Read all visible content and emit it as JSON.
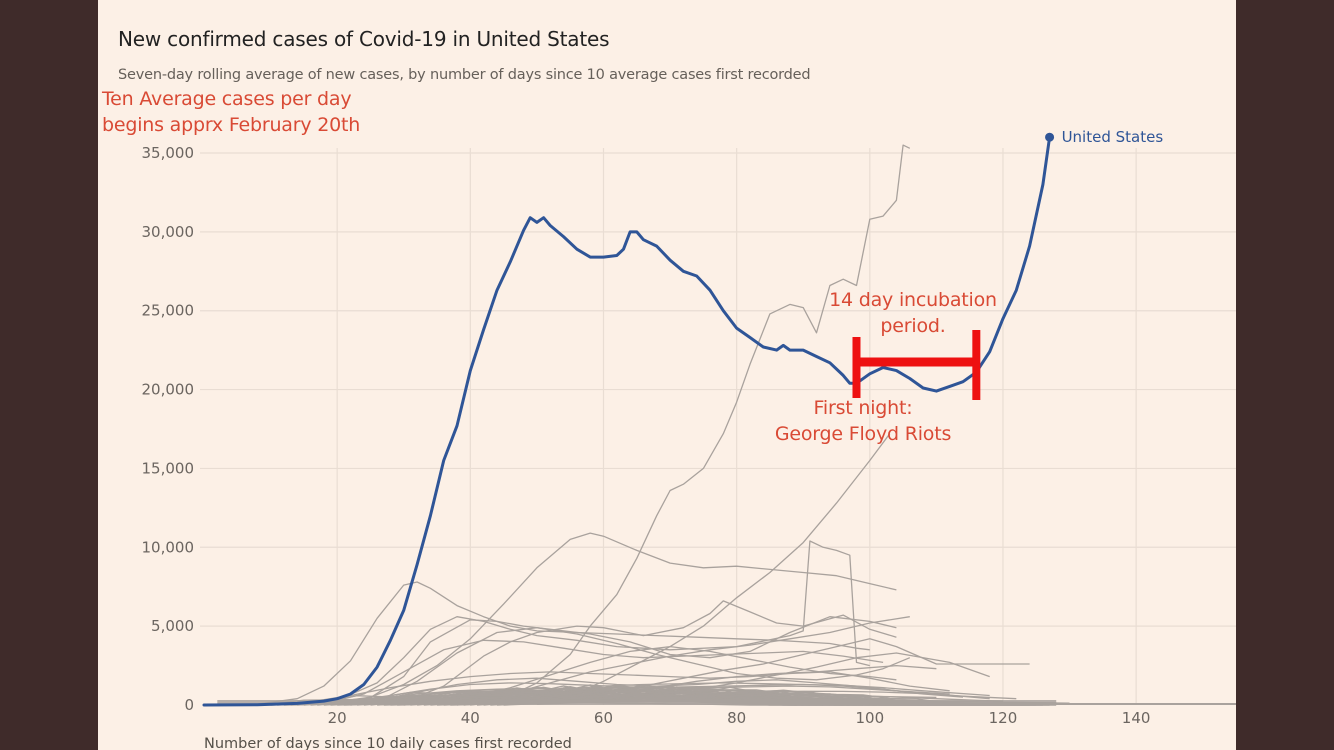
{
  "chart_data": {
    "type": "line",
    "title": "New confirmed cases of Covid-19 in United States",
    "subtitle": "Seven-day rolling average of new cases, by number of days since 10 average cases first recorded",
    "xlabel": "Number of days since 10 daily cases first recorded",
    "ylabel": "",
    "xlim": [
      0,
      155
    ],
    "ylim": [
      0,
      35000
    ],
    "x_ticks": [
      20,
      40,
      60,
      80,
      100,
      120,
      140
    ],
    "y_ticks": [
      0,
      5000,
      10000,
      15000,
      20000,
      25000,
      30000,
      35000
    ],
    "y_tick_labels": [
      "0",
      "5,000",
      "10,000",
      "15,000",
      "20,000",
      "25,000",
      "30,000",
      "35,000"
    ],
    "grid": true,
    "highlight_color": "#2f5597",
    "background_color": "#a9a29d",
    "highlight": {
      "name": "United States",
      "x": [
        0,
        8,
        14,
        18,
        20,
        22,
        24,
        26,
        28,
        30,
        32,
        34,
        36,
        38,
        40,
        42,
        44,
        46,
        48,
        49,
        50,
        51,
        52,
        54,
        56,
        58,
        60,
        62,
        63,
        64,
        65,
        66,
        68,
        70,
        72,
        74,
        76,
        78,
        80,
        82,
        84,
        86,
        87,
        88,
        90,
        92,
        94,
        96,
        97,
        98,
        100,
        102,
        104,
        106,
        108,
        110,
        112,
        114,
        116,
        118,
        120,
        122,
        124,
        126,
        127
      ],
      "values": [
        0,
        20,
        100,
        250,
        400,
        700,
        1300,
        2400,
        4100,
        6000,
        8900,
        12000,
        15500,
        17700,
        21200,
        23800,
        26300,
        28100,
        30100,
        30900,
        30600,
        30900,
        30400,
        29700,
        28900,
        28400,
        28400,
        28500,
        28900,
        30000,
        30000,
        29500,
        29100,
        28200,
        27500,
        27200,
        26300,
        25000,
        23900,
        23300,
        22700,
        22500,
        22800,
        22500,
        22500,
        22100,
        21700,
        20900,
        20400,
        20400,
        21000,
        21400,
        21200,
        20700,
        20100,
        19900,
        20200,
        20500,
        21100,
        22400,
        24500,
        26300,
        29100,
        33000,
        36000
      ]
    },
    "background_series": [
      {
        "x": [
          40,
          45,
          50,
          55,
          58,
          62,
          65,
          68,
          70,
          72,
          75,
          78,
          80,
          82,
          85,
          88,
          90,
          92,
          94,
          96,
          98,
          100,
          102,
          104,
          105,
          106
        ],
        "values": [
          0,
          400,
          1400,
          3200,
          5000,
          7000,
          9300,
          12000,
          13600,
          14000,
          15000,
          17200,
          19200,
          21600,
          24800,
          25400,
          25200,
          23600,
          26600,
          27000,
          26600,
          30800,
          31000,
          32000,
          35500,
          35300
        ]
      },
      {
        "x": [
          50,
          55,
          60,
          65,
          70,
          75,
          80,
          85,
          90,
          95,
          100,
          103
        ],
        "values": [
          100,
          600,
          1500,
          2600,
          3700,
          5000,
          6800,
          8400,
          10300,
          12800,
          15500,
          17200
        ]
      },
      {
        "x": [
          20,
          25,
          30,
          35,
          40,
          45,
          50,
          55,
          58,
          60,
          65,
          70,
          75,
          80,
          85,
          90,
          95,
          100,
          104
        ],
        "values": [
          200,
          500,
          1300,
          2500,
          4200,
          6400,
          8700,
          10500,
          10900,
          10700,
          9800,
          9000,
          8700,
          8800,
          8600,
          8400,
          8200,
          7700,
          7300
        ]
      },
      {
        "x": [
          8,
          14,
          18,
          22,
          26,
          30,
          32,
          34,
          38,
          42,
          46,
          50,
          56,
          62,
          68,
          74,
          80,
          86,
          90,
          94,
          98,
          100
        ],
        "values": [
          50,
          400,
          1200,
          2800,
          5500,
          7600,
          7800,
          7400,
          6300,
          5600,
          5000,
          4700,
          4600,
          4500,
          4400,
          4300,
          4200,
          4100,
          4000,
          3900,
          3600,
          3500
        ]
      },
      {
        "x": [
          20,
          26,
          30,
          34,
          38,
          42,
          46,
          50,
          56,
          62,
          70,
          80,
          88,
          90,
          91,
          93,
          95,
          97,
          98,
          100
        ],
        "values": [
          300,
          1400,
          3000,
          4800,
          5600,
          5300,
          4800,
          4400,
          4100,
          3700,
          3500,
          3700,
          4400,
          4700,
          10400,
          10000,
          9800,
          9500,
          2700,
          2500
        ]
      },
      {
        "x": [
          24,
          30,
          34,
          40,
          44,
          48,
          52,
          58,
          64,
          70,
          76,
          82,
          88,
          94,
          100,
          104
        ],
        "values": [
          200,
          1800,
          4000,
          5400,
          5300,
          5000,
          4800,
          4500,
          4000,
          3200,
          3000,
          3400,
          4600,
          5600,
          5300,
          4900
        ]
      },
      {
        "x": [
          30,
          36,
          42,
          46,
          50,
          56,
          60,
          66,
          72,
          76,
          78,
          82,
          86,
          90,
          96,
          100,
          104
        ],
        "values": [
          200,
          1200,
          3100,
          4000,
          4600,
          5000,
          4900,
          4400,
          4900,
          5800,
          6600,
          5900,
          5200,
          5000,
          5700,
          4800,
          4300
        ]
      },
      {
        "x": [
          60,
          66,
          72,
          78,
          84,
          90,
          94,
          100,
          104,
          110,
          116,
          124
        ],
        "values": [
          500,
          1200,
          1700,
          2200,
          2600,
          3200,
          3600,
          4200,
          3700,
          2600,
          2600,
          2600
        ]
      },
      {
        "x": [
          26,
          32,
          38,
          44,
          50,
          56,
          62,
          68,
          74,
          80,
          86,
          92,
          98,
          102,
          106
        ],
        "values": [
          200,
          1500,
          3300,
          4600,
          4900,
          4500,
          3900,
          3200,
          2600,
          2000,
          1700,
          1600,
          1900,
          2300,
          3000
        ]
      },
      {
        "x": [
          18,
          24,
          30,
          36,
          42,
          48,
          54,
          60,
          66,
          72,
          78,
          84,
          90,
          96,
          102
        ],
        "values": [
          100,
          700,
          2100,
          3500,
          4100,
          4000,
          3600,
          3200,
          3000,
          3100,
          3200,
          3300,
          3400,
          3100,
          2700
        ]
      },
      {
        "x": [
          40,
          46,
          52,
          58,
          64,
          70,
          76,
          82,
          88,
          94,
          100,
          106
        ],
        "values": [
          100,
          700,
          1400,
          2100,
          2600,
          3100,
          3500,
          3800,
          4200,
          4600,
          5200,
          5600
        ]
      },
      {
        "x": [
          34,
          40,
          46,
          52,
          58,
          64,
          70,
          76,
          82,
          88,
          94,
          100,
          104
        ],
        "values": [
          100,
          500,
          1100,
          1900,
          2700,
          3400,
          3700,
          3400,
          2900,
          2400,
          2000,
          1800,
          1600
        ]
      },
      {
        "x": [
          10,
          16,
          22,
          28,
          34,
          40,
          46,
          52,
          58,
          64,
          70,
          76,
          82,
          88,
          94,
          100,
          106,
          112
        ],
        "values": [
          40,
          200,
          600,
          1100,
          1500,
          1800,
          2000,
          2100,
          2000,
          1900,
          1800,
          1700,
          1800,
          2000,
          2100,
          1700,
          1200,
          900
        ]
      },
      {
        "x": [
          20,
          26,
          32,
          38,
          44,
          50,
          56,
          62,
          68,
          74,
          80,
          86,
          92,
          98,
          104,
          110,
          118
        ],
        "values": [
          60,
          300,
          800,
          1300,
          1600,
          1700,
          1500,
          1300,
          1200,
          1300,
          1500,
          1600,
          1400,
          1200,
          900,
          700,
          400
        ]
      },
      {
        "x": [
          14,
          20,
          26,
          32,
          38,
          44,
          50,
          56,
          62,
          68,
          74,
          80,
          86,
          92,
          98,
          104,
          110,
          116,
          120
        ],
        "values": [
          30,
          150,
          400,
          700,
          900,
          1000,
          1050,
          1000,
          950,
          900,
          850,
          800,
          750,
          700,
          600,
          500,
          400,
          300,
          250
        ]
      },
      {
        "x": [
          6,
          12,
          18,
          24,
          30,
          36,
          42,
          48,
          54,
          60,
          66,
          72,
          78,
          84,
          90,
          96,
          102,
          108,
          114,
          120,
          126
        ],
        "values": [
          20,
          80,
          200,
          350,
          500,
          600,
          650,
          700,
          650,
          600,
          550,
          500,
          480,
          450,
          420,
          380,
          330,
          280,
          230,
          180,
          130
        ]
      },
      {
        "x": [
          16,
          22,
          28,
          34,
          40,
          46,
          52,
          58,
          64,
          70,
          76,
          82,
          88,
          94,
          100,
          106,
          112
        ],
        "values": [
          50,
          250,
          600,
          1000,
          1300,
          1400,
          1350,
          1250,
          1150,
          1100,
          1100,
          1150,
          1200,
          1150,
          1000,
          850,
          700
        ]
      },
      {
        "x": [
          24,
          30,
          36,
          42,
          48,
          54,
          60,
          66,
          72,
          78,
          84,
          90,
          96,
          102,
          108,
          114
        ],
        "values": [
          40,
          200,
          450,
          700,
          900,
          1000,
          1050,
          1100,
          1150,
          1200,
          1250,
          1300,
          1200,
          1000,
          700,
          500
        ]
      },
      {
        "x": [
          30,
          36,
          42,
          48,
          54,
          60,
          66,
          72,
          78,
          84,
          90,
          96,
          102,
          108,
          118
        ],
        "values": [
          50,
          200,
          500,
          800,
          1000,
          1200,
          1300,
          1350,
          1400,
          1350,
          1300,
          1250,
          1100,
          900,
          600
        ]
      },
      {
        "x": [
          12,
          18,
          24,
          30,
          36,
          42,
          48,
          54,
          60,
          66,
          72,
          78,
          84,
          90,
          96,
          102,
          108,
          114,
          120,
          128
        ],
        "values": [
          10,
          60,
          150,
          250,
          320,
          380,
          420,
          450,
          460,
          440,
          420,
          400,
          380,
          360,
          330,
          300,
          260,
          220,
          180,
          140
        ]
      },
      {
        "x": [
          20,
          26,
          32,
          38,
          44,
          50,
          56,
          62,
          68,
          74,
          80,
          86,
          92,
          98,
          104,
          110
        ],
        "values": [
          30,
          120,
          300,
          500,
          700,
          850,
          900,
          880,
          820,
          760,
          700,
          650,
          600,
          560,
          520,
          480
        ]
      },
      {
        "x": [
          36,
          42,
          48,
          54,
          60,
          66,
          72,
          78,
          84,
          90,
          96,
          102,
          108,
          114,
          122
        ],
        "values": [
          30,
          120,
          280,
          450,
          600,
          700,
          780,
          820,
          850,
          870,
          860,
          820,
          720,
          560,
          400
        ]
      },
      {
        "x": [
          8,
          14,
          20,
          26,
          32,
          38,
          44,
          50,
          56,
          62,
          68,
          74,
          80,
          86,
          92,
          98,
          104,
          110,
          116,
          124,
          130
        ],
        "values": [
          10,
          40,
          100,
          180,
          250,
          300,
          330,
          350,
          340,
          320,
          300,
          280,
          270,
          260,
          250,
          240,
          220,
          200,
          180,
          150,
          120
        ]
      },
      {
        "x": [
          44,
          50,
          56,
          62,
          68,
          74,
          80,
          86,
          92,
          98,
          104,
          110
        ],
        "values": [
          50,
          300,
          600,
          900,
          1100,
          1500,
          1800,
          2000,
          2100,
          2300,
          2500,
          2300
        ]
      },
      {
        "x": [
          50,
          56,
          62,
          68,
          74,
          80,
          86,
          92,
          98,
          104,
          112,
          118
        ],
        "values": [
          40,
          200,
          450,
          700,
          1000,
          1400,
          1900,
          2400,
          3000,
          3300,
          2700,
          1800
        ]
      }
    ]
  },
  "annotations": {
    "start_line1": "Ten Average cases per day",
    "start_line2": "begins apprx February 20th",
    "incubation_line1": "14 day incubation",
    "incubation_line2": "period.",
    "riots_line1": "First night:",
    "riots_line2": "George Floyd Riots",
    "bracket_start_day": 98,
    "bracket_end_day": 116,
    "annotation_color": "#d94a35",
    "bracket_color": "#ee1111"
  },
  "colors": {
    "page_background": "#3f2b2a",
    "panel_background": "#fcf0e6",
    "grid": "#e9ddd3"
  }
}
